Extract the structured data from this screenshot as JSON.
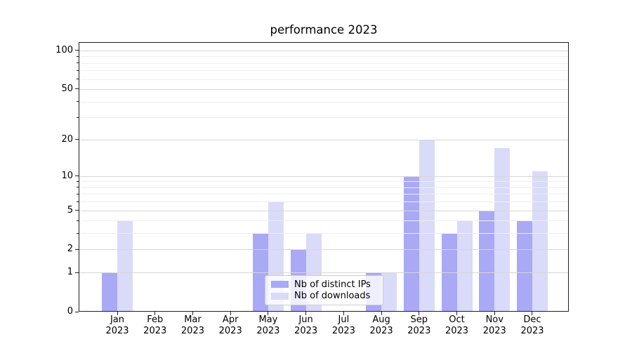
{
  "figure": {
    "title": "performance 2023"
  },
  "chart_data": {
    "type": "bar",
    "title": "performance 2023",
    "categories": [
      "Jan",
      "Feb",
      "Mar",
      "Apr",
      "May",
      "Jun",
      "Jul",
      "Aug",
      "Sep",
      "Oct",
      "Nov",
      "Dec"
    ],
    "x_year_line": "2023",
    "series": [
      {
        "name": "Nb of distinct IPs",
        "color": "#a9a9f6",
        "values": [
          1,
          0,
          0,
          0,
          3,
          2,
          0,
          1,
          10,
          3,
          5,
          4
        ]
      },
      {
        "name": "Nb of downloads",
        "color": "#dadaf9",
        "values": [
          4,
          0,
          0,
          0,
          6,
          3,
          0,
          1,
          20,
          4,
          17,
          11
        ]
      }
    ],
    "xlabel": "",
    "ylabel": "",
    "yscale": "log1p",
    "ylim": [
      0,
      116
    ],
    "y_major_ticks": [
      0,
      1,
      2,
      5,
      10,
      20,
      50,
      100
    ],
    "y_minor_ticks": [
      3,
      4,
      6,
      7,
      8,
      9,
      30,
      40,
      60,
      70,
      80,
      90
    ],
    "grid": "on",
    "grid_above_bars": true,
    "legend_position": "lower center"
  },
  "colors": {
    "grid_major": "#d7d7d7",
    "grid_minor": "#eeeeee",
    "spine": "#1f1f1f",
    "text": "#000000",
    "background": "#ffffff"
  }
}
